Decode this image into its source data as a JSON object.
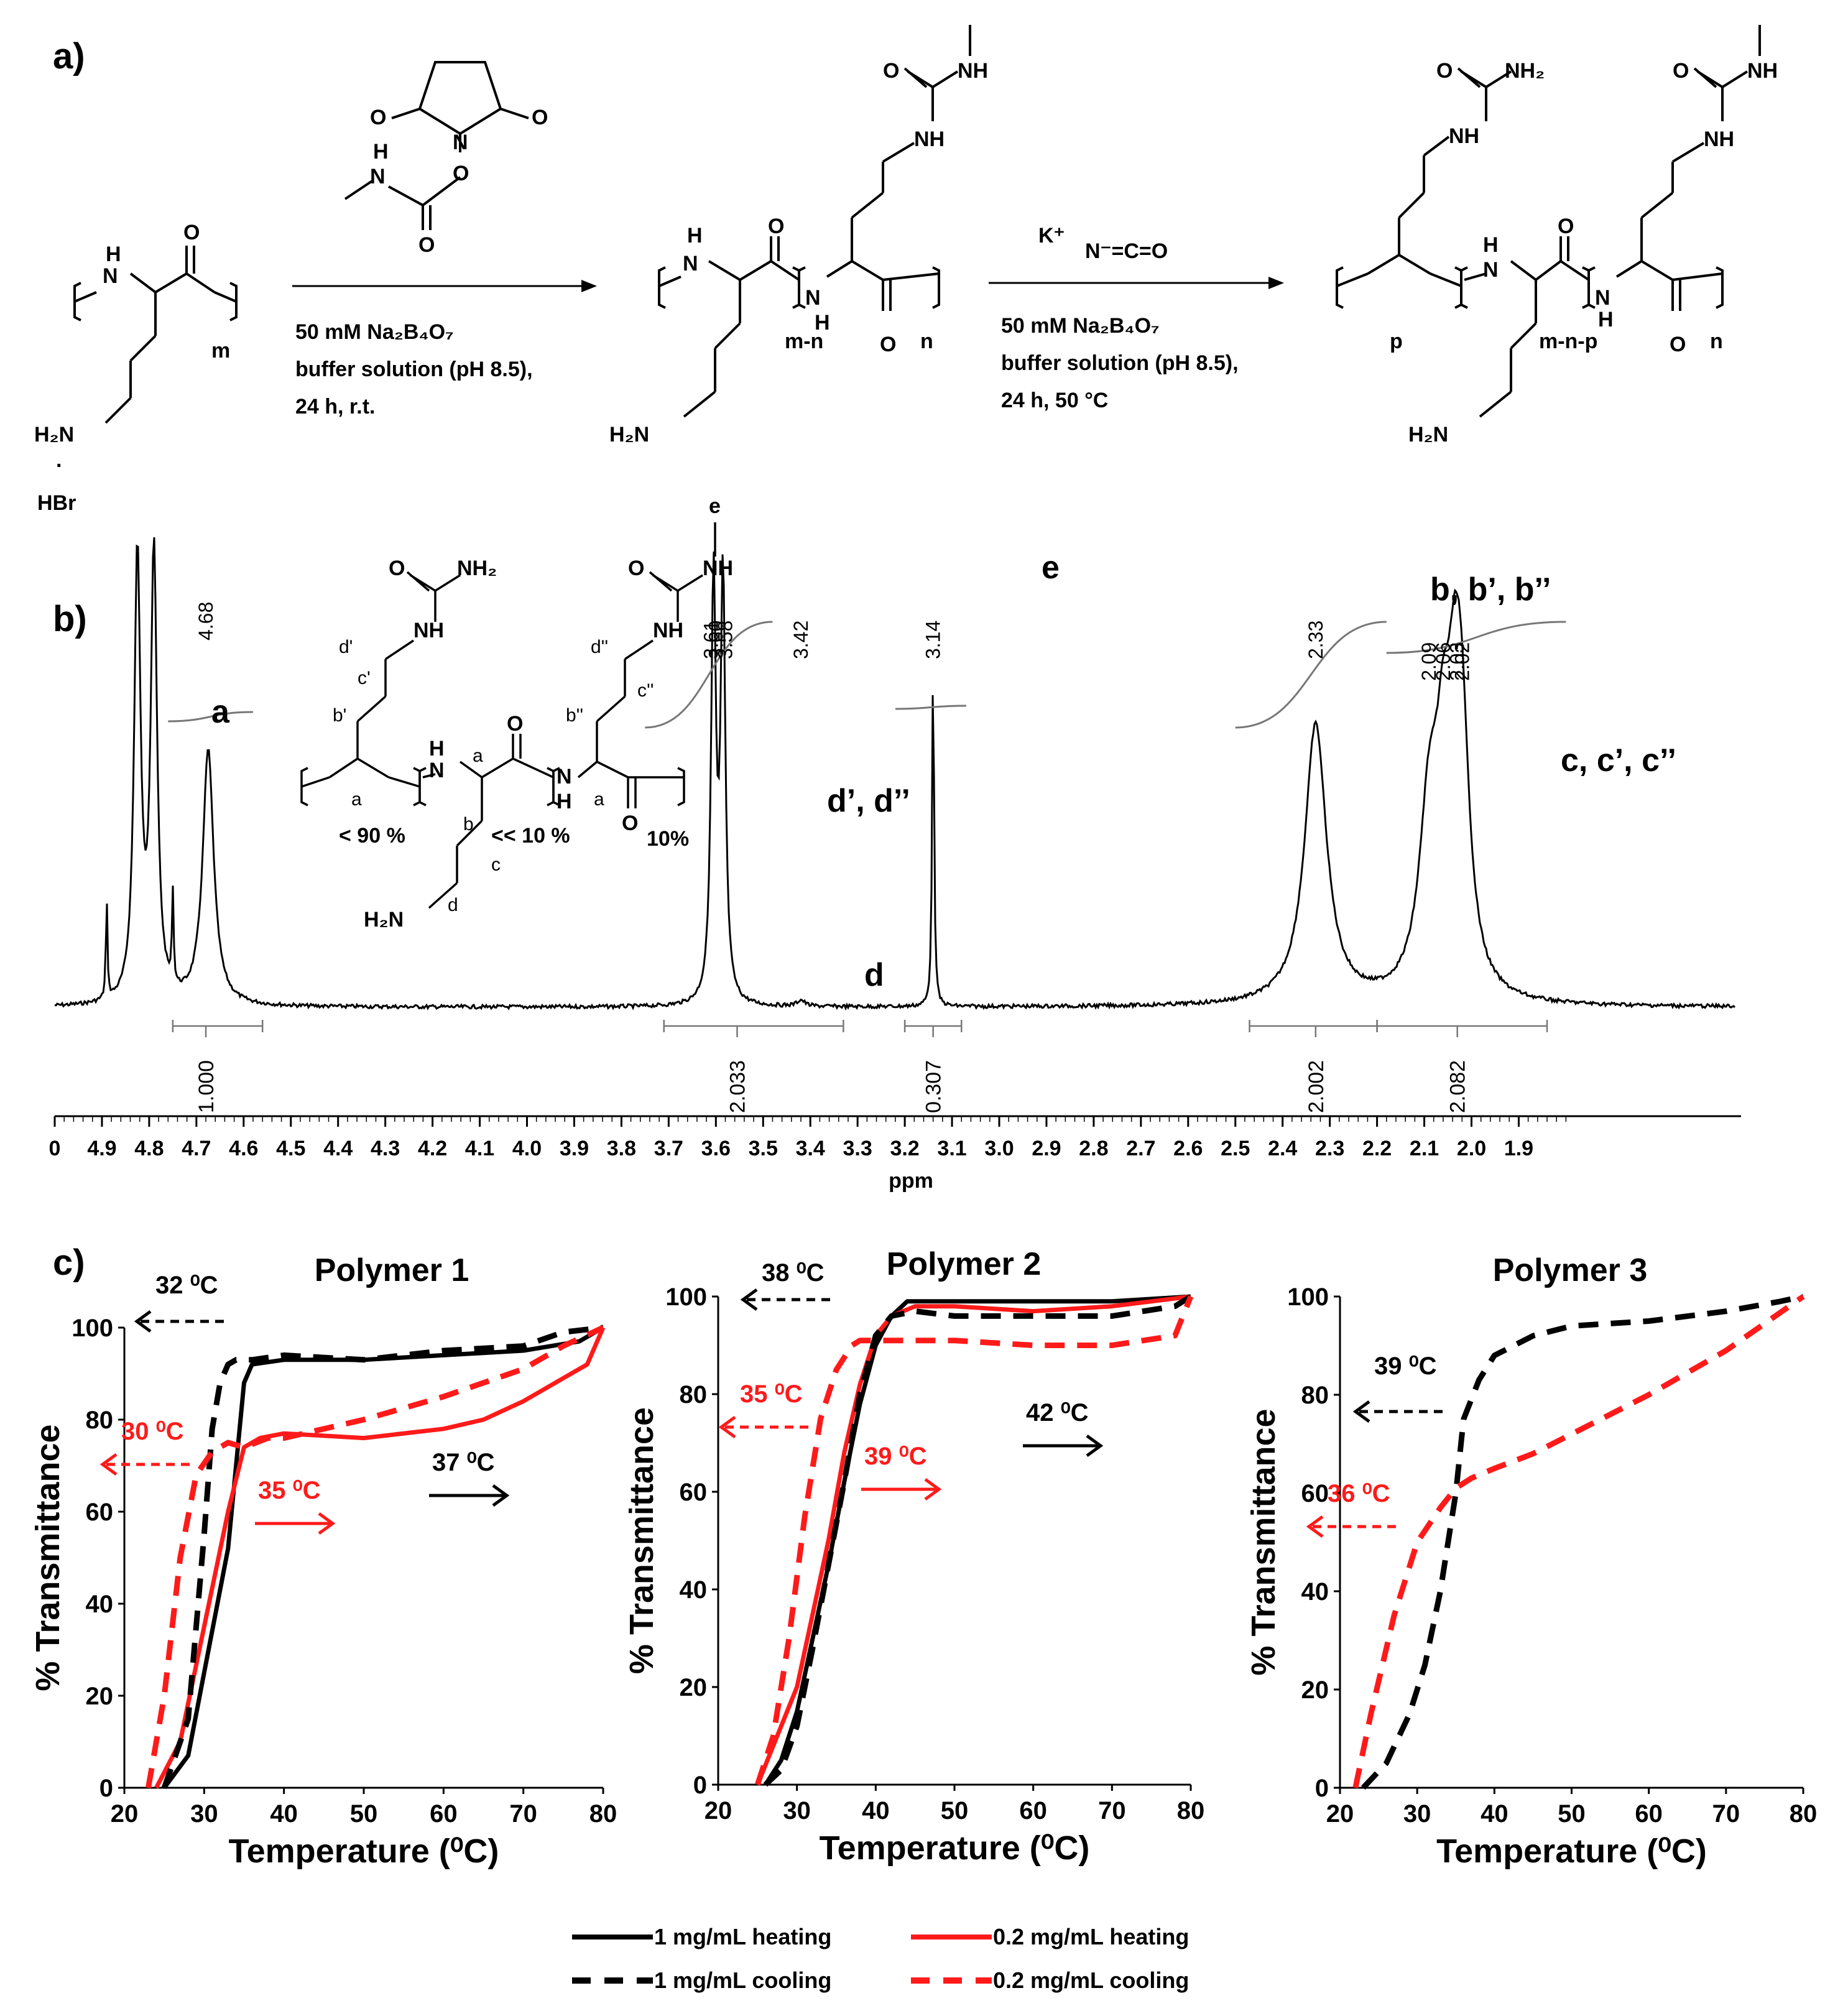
{
  "panel_a": {
    "label": "a)",
    "monomer_m": "m",
    "nh_h": "H",
    "nh_n": "N",
    "o": "O",
    "h2n": "H₂N",
    "dot": "·",
    "hbr": "HBr",
    "nhs_o1": "O",
    "nhs_o2": "O",
    "nhs_n": "N",
    "nhs_o3": "O",
    "carb_h": "H",
    "carb_n": "N",
    "carb_o": "O",
    "step1_line1": "50 mM Na₂B₄O₇",
    "step1_line2": "buffer solution (pH 8.5),",
    "step1_line3": "24 h, r.t.",
    "mid_mn": "m-n",
    "mid_n": "n",
    "mid_o": "O",
    "mid_nh": "NH",
    "mid_urea_o": "O",
    "mid_urea_nh": "NH",
    "step2_k": "K⁺",
    "step2_nco": "N⁻=C=O",
    "step2_line1": "50 mM Na₂B₄O₇",
    "step2_line2": "buffer solution (pH 8.5),",
    "step2_line3": "24 h, 50 °C",
    "prod_p": "p",
    "prod_mnp": "m-n-p",
    "prod_n": "n",
    "prod_nh2": "NH₂",
    "prod_nh": "NH",
    "prod_o": "O"
  },
  "panel_b": {
    "label": "b)",
    "struct_pct1": "< 90 %",
    "struct_pct2": "<< 10 %",
    "struct_pct3": "10%",
    "struct_nh2": "NH₂",
    "struct_nh": "NH",
    "struct_o": "O",
    "struct_h2n": "H₂N",
    "struct_e": "e",
    "labels_small": [
      "a",
      "a",
      "a",
      "b",
      "c",
      "d",
      "b'",
      "c'",
      "d'",
      "b''",
      "c''",
      "d''"
    ],
    "peak_labels": {
      "a": "a",
      "dd": "d’, d’’",
      "d": "d",
      "e": "e",
      "bbb": "b, b’, b’’",
      "ccc": "c, c’, c’’"
    },
    "peak_values": [
      "4.68",
      "3.61",
      "3.60",
      "3.58",
      "3.42",
      "3.14",
      "2.33",
      "2.09",
      "2.06",
      "2.03",
      "2.02"
    ],
    "integrals": [
      "1.000",
      "2.033",
      "0.307",
      "2.002",
      "2.082"
    ],
    "axis_ticks": [
      "0",
      "4.9",
      "4.8",
      "4.7",
      "4.6",
      "4.5",
      "4.4",
      "4.3",
      "4.2",
      "4.1",
      "4.0",
      "3.9",
      "3.8",
      "3.7",
      "3.6",
      "3.5",
      "3.4",
      "3.3",
      "3.2",
      "3.1",
      "3.0",
      "2.9",
      "2.8",
      "2.7",
      "2.6",
      "2.5",
      "2.4",
      "2.3",
      "2.2",
      "2.1",
      "2.0",
      "1.9"
    ],
    "axis_label": "ppm"
  },
  "panel_c": {
    "label": "c)",
    "legend": [
      "1 mg/mL heating",
      "0.2 mg/mL heating",
      "1 mg/mL cooling",
      "0.2 mg/mL cooling"
    ]
  },
  "colors": {
    "black": "#000000",
    "red": "#ff1a1a",
    "grey": "#777777"
  },
  "chart_data": [
    {
      "type": "line",
      "title": "Polymer 1",
      "xlabel": "Temperature (⁰C)",
      "ylabel": "% Transmittance",
      "xlim": [
        20,
        80
      ],
      "ylim": [
        0,
        100
      ],
      "xticks": [
        "20",
        "30",
        "40",
        "50",
        "60",
        "70",
        "80"
      ],
      "yticks": [
        "0",
        "20",
        "40",
        "60",
        "80",
        "100"
      ],
      "series": [
        {
          "name": "1 mg/mL heating",
          "x": [
            25,
            28,
            30,
            33,
            35,
            36,
            40,
            50,
            60,
            70,
            77,
            80
          ],
          "y": [
            0,
            7,
            25,
            52,
            88,
            92,
            93,
            93,
            94,
            95,
            97,
            100
          ]
        },
        {
          "name": "0.2 mg/mL heating",
          "x": [
            24,
            27,
            30,
            33,
            35,
            37,
            40,
            50,
            60,
            65,
            70,
            75,
            78,
            80
          ],
          "y": [
            0,
            10,
            35,
            60,
            74,
            76,
            77,
            76,
            78,
            80,
            84,
            89,
            92,
            100
          ]
        },
        {
          "name": "1 mg/mL cooling",
          "x": [
            25,
            28,
            30,
            31,
            32,
            33,
            34,
            36,
            40,
            50,
            60,
            70,
            75,
            80
          ],
          "y": [
            0,
            15,
            55,
            78,
            88,
            92,
            93,
            93,
            94,
            93,
            95,
            96,
            99,
            100
          ]
        },
        {
          "name": "0.2 mg/mL cooling",
          "x": [
            23,
            25,
            27,
            29,
            31,
            33,
            35,
            38,
            40,
            50,
            60,
            70,
            75,
            80
          ],
          "y": [
            0,
            20,
            50,
            68,
            73,
            75,
            74,
            76,
            76,
            80,
            85,
            91,
            96,
            100
          ]
        }
      ],
      "annotations": [
        {
          "text": "32 ⁰C",
          "color": "black",
          "direction": "left"
        },
        {
          "text": "30 ⁰C",
          "color": "red",
          "direction": "left"
        },
        {
          "text": "35 ⁰C",
          "color": "red",
          "direction": "right"
        },
        {
          "text": "37 ⁰C",
          "color": "black",
          "direction": "right"
        }
      ]
    },
    {
      "type": "line",
      "title": "Polymer 2",
      "xlabel": "Temperature (⁰C)",
      "ylabel": "% Transmittance",
      "xlim": [
        20,
        80
      ],
      "ylim": [
        0,
        100
      ],
      "xticks": [
        "20",
        "30",
        "40",
        "50",
        "60",
        "70",
        "80"
      ],
      "yticks": [
        "0",
        "20",
        "40",
        "60",
        "80",
        "100"
      ],
      "series": [
        {
          "name": "1 mg/mL heating",
          "x": [
            26,
            28,
            30,
            32,
            34,
            36,
            38,
            40,
            42,
            44,
            50,
            60,
            70,
            80
          ],
          "y": [
            0,
            5,
            15,
            30,
            45,
            62,
            78,
            90,
            96,
            99,
            99,
            99,
            99,
            100
          ]
        },
        {
          "name": "0.2 mg/mL heating",
          "x": [
            25,
            27,
            30,
            32,
            34,
            36,
            38,
            40,
            42,
            45,
            50,
            60,
            70,
            75,
            80
          ],
          "y": [
            0,
            8,
            20,
            35,
            50,
            68,
            82,
            92,
            96,
            98,
            98,
            97,
            98,
            99,
            100
          ]
        },
        {
          "name": "1 mg/mL cooling",
          "x": [
            26,
            28,
            30,
            32,
            34,
            36,
            38,
            40,
            42,
            45,
            50,
            60,
            70,
            78,
            80
          ],
          "y": [
            0,
            3,
            12,
            28,
            45,
            62,
            80,
            92,
            96,
            97,
            96,
            96,
            96,
            98,
            100
          ]
        },
        {
          "name": "0.2 mg/mL cooling",
          "x": [
            25,
            27,
            29,
            31,
            33,
            35,
            37,
            38,
            40,
            45,
            50,
            60,
            70,
            78,
            80
          ],
          "y": [
            0,
            10,
            30,
            55,
            75,
            85,
            90,
            91,
            91,
            91,
            91,
            90,
            90,
            92,
            100
          ]
        }
      ],
      "annotations": [
        {
          "text": "38 ⁰C",
          "color": "black",
          "direction": "left"
        },
        {
          "text": "35 ⁰C",
          "color": "red",
          "direction": "left"
        },
        {
          "text": "39 ⁰C",
          "color": "red",
          "direction": "right"
        },
        {
          "text": "42 ⁰C",
          "color": "black",
          "direction": "right"
        }
      ]
    },
    {
      "type": "line",
      "title": "Polymer 3",
      "xlabel": "Temperature (⁰C)",
      "ylabel": "% Transmittance",
      "xlim": [
        20,
        80
      ],
      "ylim": [
        0,
        100
      ],
      "xticks": [
        "20",
        "30",
        "40",
        "50",
        "60",
        "70",
        "80"
      ],
      "yticks": [
        "0",
        "20",
        "40",
        "60",
        "80",
        "100"
      ],
      "series": [
        {
          "name": "1 mg/mL cooling",
          "x": [
            23,
            26,
            29,
            31,
            33,
            35,
            36,
            38,
            40,
            45,
            50,
            60,
            70,
            77,
            80
          ],
          "y": [
            0,
            5,
            15,
            25,
            40,
            60,
            75,
            83,
            88,
            92,
            94,
            95,
            97,
            99,
            100
          ]
        },
        {
          "name": "0.2 mg/mL cooling",
          "x": [
            22,
            24,
            27,
            30,
            33,
            35,
            37,
            40,
            45,
            50,
            60,
            70,
            80
          ],
          "y": [
            0,
            15,
            35,
            50,
            57,
            61,
            63,
            65,
            68,
            72,
            80,
            89,
            100
          ]
        }
      ],
      "annotations": [
        {
          "text": "39 ⁰C",
          "color": "black",
          "direction": "left"
        },
        {
          "text": "36 ⁰C",
          "color": "red",
          "direction": "left"
        }
      ]
    }
  ]
}
